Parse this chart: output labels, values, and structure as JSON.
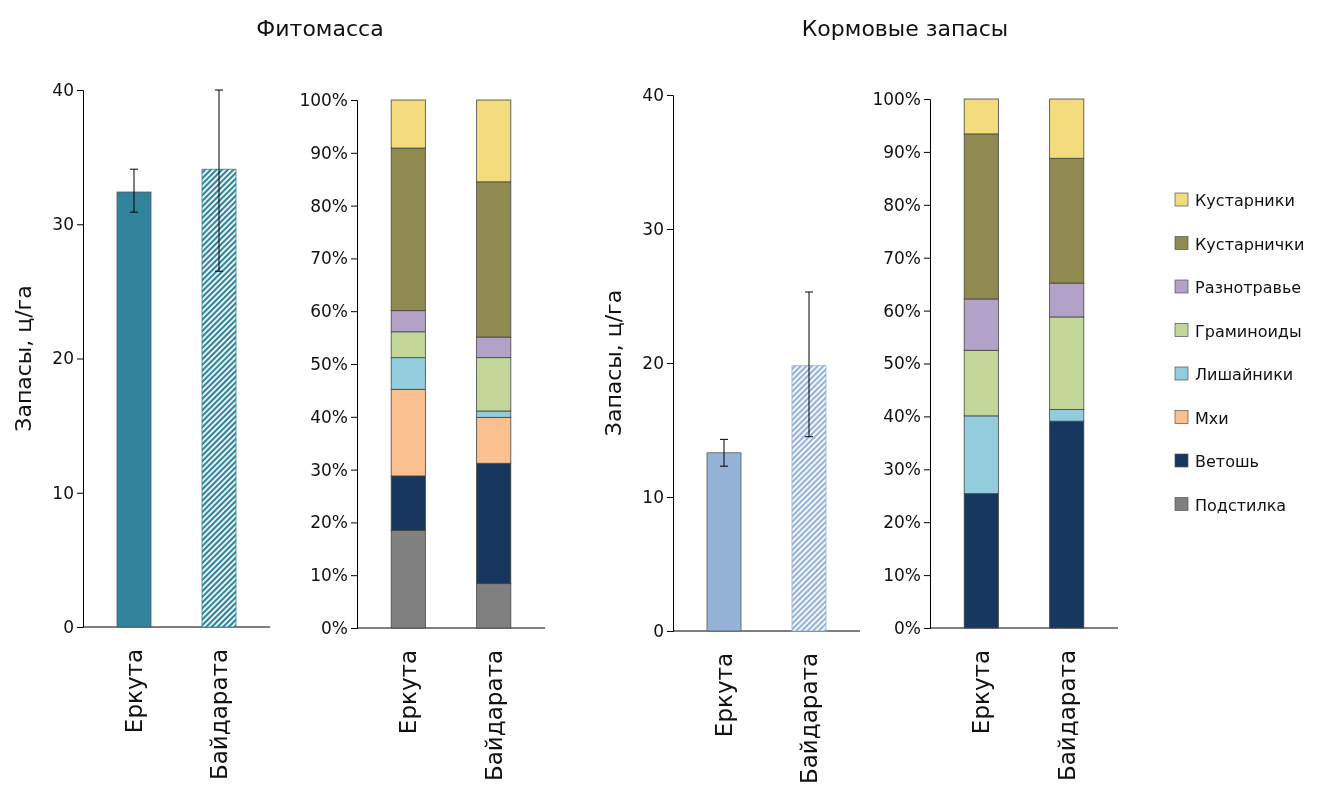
{
  "chart_data": [
    {
      "type": "bar",
      "title": "Фитомасса",
      "ylabel": "Запасы, ц/га",
      "categories": [
        "Еркута",
        "Байдарата"
      ],
      "values": [
        32.4,
        34.1
      ],
      "colors": [
        "#31849b",
        "#31849b"
      ],
      "errors": [
        [
          30.9,
          34.1
        ],
        [
          26.5,
          40
        ]
      ],
      "ylim": [
        0,
        40
      ],
      "yticks": [
        0,
        10,
        20,
        30,
        40
      ],
      "grid": false,
      "legend": false
    },
    {
      "type": "bar",
      "stacked": true,
      "categories": [
        "Еркута",
        "Байдарата"
      ],
      "ylim": [
        0,
        100
      ],
      "yticks": [
        {
          "value": 0,
          "label": "0%"
        },
        {
          "value": 10,
          "label": "10%"
        },
        {
          "value": 20,
          "label": "20%"
        },
        {
          "value": 30,
          "label": "30%"
        },
        {
          "value": 40,
          "label": "40%"
        },
        {
          "value": 50,
          "label": "50%"
        },
        {
          "value": 60,
          "label": "60%"
        },
        {
          "value": 70,
          "label": "70%"
        },
        {
          "value": 80,
          "label": "80%"
        },
        {
          "value": 90,
          "label": "90%"
        },
        {
          "value": 100,
          "label": "100%"
        }
      ],
      "grid": false,
      "legend": false,
      "series": [
        {
          "color": "#808080",
          "values": [
            18.5,
            8.4
          ]
        },
        {
          "color": "#17375e",
          "values": [
            10.3,
            22.8
          ]
        },
        {
          "color": "#fac090",
          "values": [
            16.4,
            8.7
          ]
        },
        {
          "color": "#93cddd",
          "values": [
            6.0,
            1.2
          ]
        },
        {
          "color": "#c4d79b",
          "values": [
            4.9,
            10.1
          ]
        },
        {
          "color": "#b3a2c7",
          "values": [
            4.0,
            3.9
          ]
        },
        {
          "color": "#8f8a50",
          "values": [
            30.8,
            29.4
          ]
        },
        {
          "color": "#f2dc7e",
          "values": [
            9.1,
            15.5
          ]
        }
      ]
    },
    {
      "type": "bar",
      "title": "Кормовые запасы",
      "ylabel": "Запасы, ц/га",
      "categories": [
        "Еркута",
        "Байдарата"
      ],
      "values": [
        13.3,
        19.8
      ],
      "colors": [
        "#95b3d7",
        "#95b3d7"
      ],
      "errors": [
        [
          12.3,
          14.3
        ],
        [
          14.5,
          25.3
        ]
      ],
      "ylim": [
        0,
        40
      ],
      "yticks": [
        0,
        10,
        20,
        30,
        40
      ],
      "grid": false,
      "legend": false
    },
    {
      "type": "bar",
      "stacked": true,
      "categories": [
        "Еркута",
        "Байдарата"
      ],
      "ylim": [
        0,
        100
      ],
      "yticks": [
        {
          "value": 0,
          "label": "0%"
        },
        {
          "value": 10,
          "label": "10%"
        },
        {
          "value": 20,
          "label": "20%"
        },
        {
          "value": 30,
          "label": "30%"
        },
        {
          "value": 40,
          "label": "40%"
        },
        {
          "value": 50,
          "label": "50%"
        },
        {
          "value": 60,
          "label": "60%"
        },
        {
          "value": 70,
          "label": "70%"
        },
        {
          "value": 80,
          "label": "80%"
        },
        {
          "value": 90,
          "label": "90%"
        },
        {
          "value": 100,
          "label": "100%"
        }
      ],
      "grid": false,
      "legend": "right",
      "series": [
        {
          "name": "Подстилка",
          "color": "#808080",
          "values": [
            0,
            0
          ]
        },
        {
          "name": "Ветошь",
          "color": "#17375e",
          "values": [
            25.4,
            39.1
          ]
        },
        {
          "name": "Мхи",
          "color": "#fac090",
          "values": [
            0,
            0
          ]
        },
        {
          "name": "Лишайники",
          "color": "#93cddd",
          "values": [
            14.7,
            2.2
          ]
        },
        {
          "name": "Граминоиды",
          "color": "#c4d79b",
          "values": [
            12.4,
            17.5
          ]
        },
        {
          "name": "Разнотравье",
          "color": "#b3a2c7",
          "values": [
            9.7,
            6.4
          ]
        },
        {
          "name": "Кустарнички",
          "color": "#8f8a50",
          "values": [
            31.2,
            23.6
          ]
        },
        {
          "name": "Кустарники",
          "color": "#f2dc7e",
          "values": [
            6.6,
            11.2
          ]
        }
      ]
    }
  ]
}
